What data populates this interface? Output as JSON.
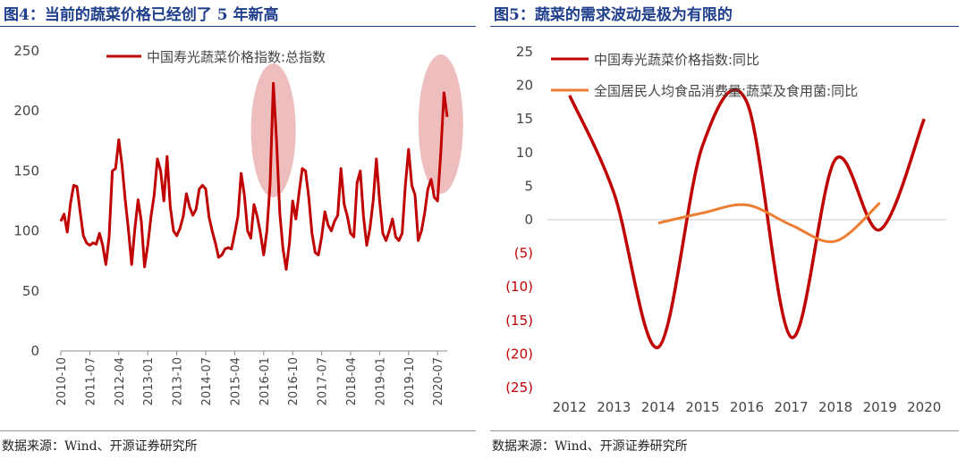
{
  "left": {
    "title": "图4：当前的蔬菜价格已经创了 5 年新高",
    "source": "数据来源：Wind、开源证券研究所",
    "highlight_color": "#e8a8a8",
    "chart_data": {
      "type": "line",
      "title": "图4：当前的蔬菜价格已经创了 5 年新高",
      "ylim": [
        0,
        250
      ],
      "yticks": [
        0,
        50,
        100,
        150,
        200,
        250
      ],
      "xlabel": "",
      "ylabel": "",
      "legend_position": "top-center",
      "x_ticks": [
        "2010-10",
        "2011-07",
        "2012-04",
        "2013-01",
        "2013-10",
        "2014-07",
        "2015-04",
        "2016-01",
        "2016-10",
        "2017-07",
        "2018-04",
        "2019-01",
        "2019-10",
        "2020-07"
      ],
      "series": [
        {
          "name": "中国寿光蔬菜价格指数:总指数",
          "color": "#c00000",
          "start": "2010-10",
          "values": [
            108,
            114,
            99,
            123,
            138,
            137,
            116,
            96,
            90,
            88,
            90,
            89,
            98,
            88,
            72,
            95,
            150,
            152,
            176,
            155,
            126,
            101,
            72,
            102,
            126,
            108,
            70,
            88,
            112,
            130,
            160,
            150,
            125,
            162,
            120,
            100,
            96,
            102,
            112,
            131,
            120,
            113,
            118,
            135,
            138,
            135,
            112,
            100,
            90,
            78,
            80,
            85,
            86,
            85,
            98,
            112,
            148,
            130,
            100,
            94,
            122,
            112,
            98,
            80,
            100,
            140,
            223,
            175,
            115,
            85,
            68,
            90,
            125,
            110,
            132,
            152,
            150,
            128,
            98,
            82,
            80,
            95,
            116,
            105,
            100,
            108,
            113,
            152,
            122,
            112,
            98,
            95,
            140,
            150,
            112,
            88,
            102,
            125,
            160,
            125,
            98,
            92,
            100,
            110,
            95,
            92,
            98,
            138,
            168,
            138,
            130,
            92,
            100,
            115,
            135,
            143,
            128,
            125,
            165,
            215,
            195
          ]
        }
      ],
      "annotations": [
        "highlight 2016-02 peak",
        "highlight 2020-12 peak"
      ]
    }
  },
  "right": {
    "title": "图5：蔬菜的需求波动是极为有限的",
    "source": "数据来源：Wind、开源证券研究所",
    "chart_data": {
      "type": "line",
      "title": "图5：蔬菜的需求波动是极为有限的",
      "ylim": [
        -25,
        25
      ],
      "yticks": [
        25,
        20,
        15,
        10,
        5,
        0,
        -5,
        -10,
        -15,
        -20,
        -25
      ],
      "ytick_labels": [
        "25",
        "20",
        "15",
        "10",
        "5",
        "0",
        "(5)",
        "(10)",
        "(15)",
        "(20)",
        "(25)"
      ],
      "negative_label_color": "#c00000",
      "categories": [
        "2012",
        "2013",
        "2014",
        "2015",
        "2016",
        "2017",
        "2018",
        "2019",
        "2020"
      ],
      "xlabel": "",
      "ylabel": "",
      "legend_position": "top-left",
      "series": [
        {
          "name": "中国寿光蔬菜价格指数:同比",
          "color": "#c00000",
          "x": [
            2012,
            2013,
            2014,
            2015,
            2016,
            2017,
            2018,
            2019,
            2020
          ],
          "values": [
            18.5,
            4,
            -19,
            11,
            17.5,
            -17.5,
            9,
            -1.5,
            15
          ]
        },
        {
          "name": "全国居民人均食品消费量:蔬菜及食用菌:同比",
          "color": "#ed7d31",
          "x": [
            2014,
            2015,
            2016,
            2017,
            2018,
            2019
          ],
          "values": [
            -0.5,
            1.0,
            2.2,
            -0.8,
            -3.2,
            2.5
          ]
        }
      ]
    }
  }
}
